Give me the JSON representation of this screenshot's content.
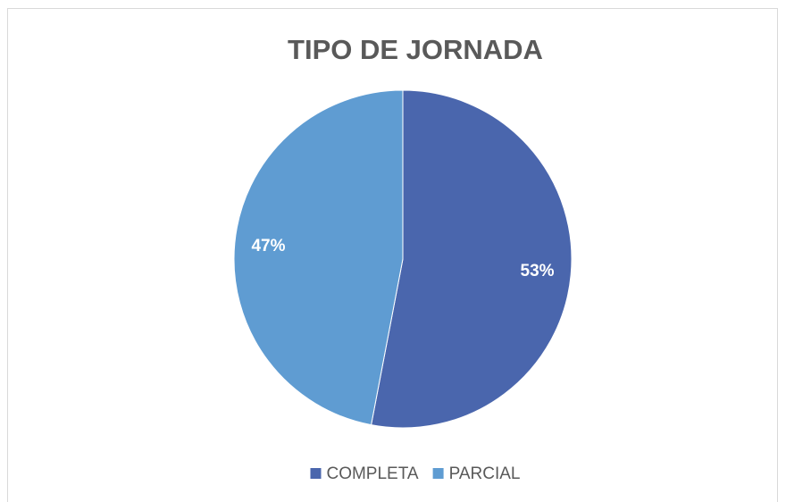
{
  "chart_data": {
    "type": "pie",
    "title": "TIPO DE JORNADA",
    "categories": [
      "COMPLETA",
      "PARCIAL"
    ],
    "values": [
      53,
      47
    ],
    "value_labels": [
      "53%",
      "47%"
    ],
    "colors": [
      "#4a66ad",
      "#5f9cd2"
    ],
    "legend": "bottom"
  }
}
